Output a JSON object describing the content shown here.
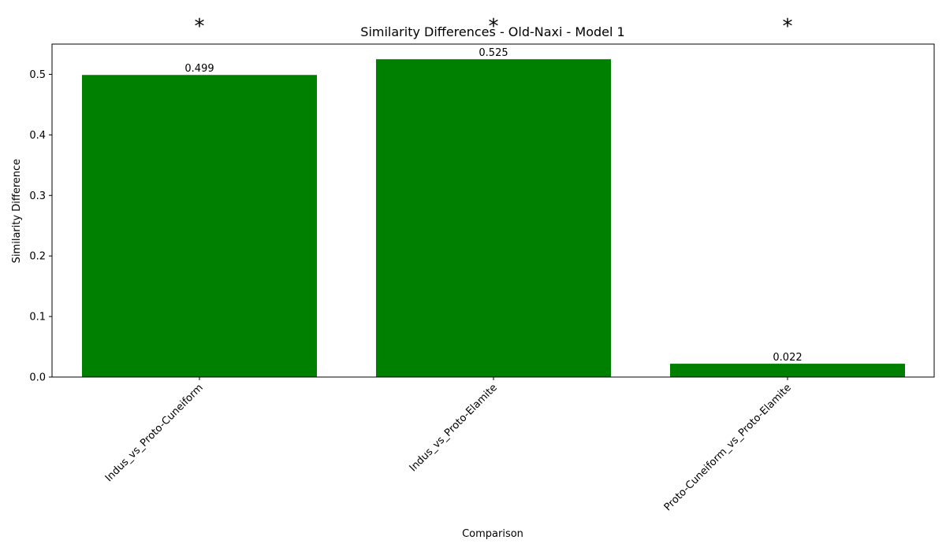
{
  "chart_data": {
    "type": "bar",
    "title": "Similarity Differences - Old-Naxi - Model 1",
    "xlabel": "Comparison",
    "ylabel": "Similarity Difference",
    "categories": [
      "Indus_vs_Proto-Cuneiform",
      "Indus_vs_Proto-Elamite",
      "Proto-Cuneiform_vs_Proto-Elamite"
    ],
    "values": [
      0.499,
      0.525,
      0.022
    ],
    "value_labels": [
      "0.499",
      "0.525",
      "0.022"
    ],
    "significance_markers": [
      "*",
      "*",
      "*"
    ],
    "ylim": [
      0,
      0.55
    ],
    "yticks": [
      0.0,
      0.1,
      0.2,
      0.3,
      0.4,
      0.5
    ],
    "ytick_labels": [
      "0.0",
      "0.1",
      "0.2",
      "0.3",
      "0.4",
      "0.5"
    ],
    "bar_color": "#008000",
    "grid": false,
    "legend": "none"
  }
}
